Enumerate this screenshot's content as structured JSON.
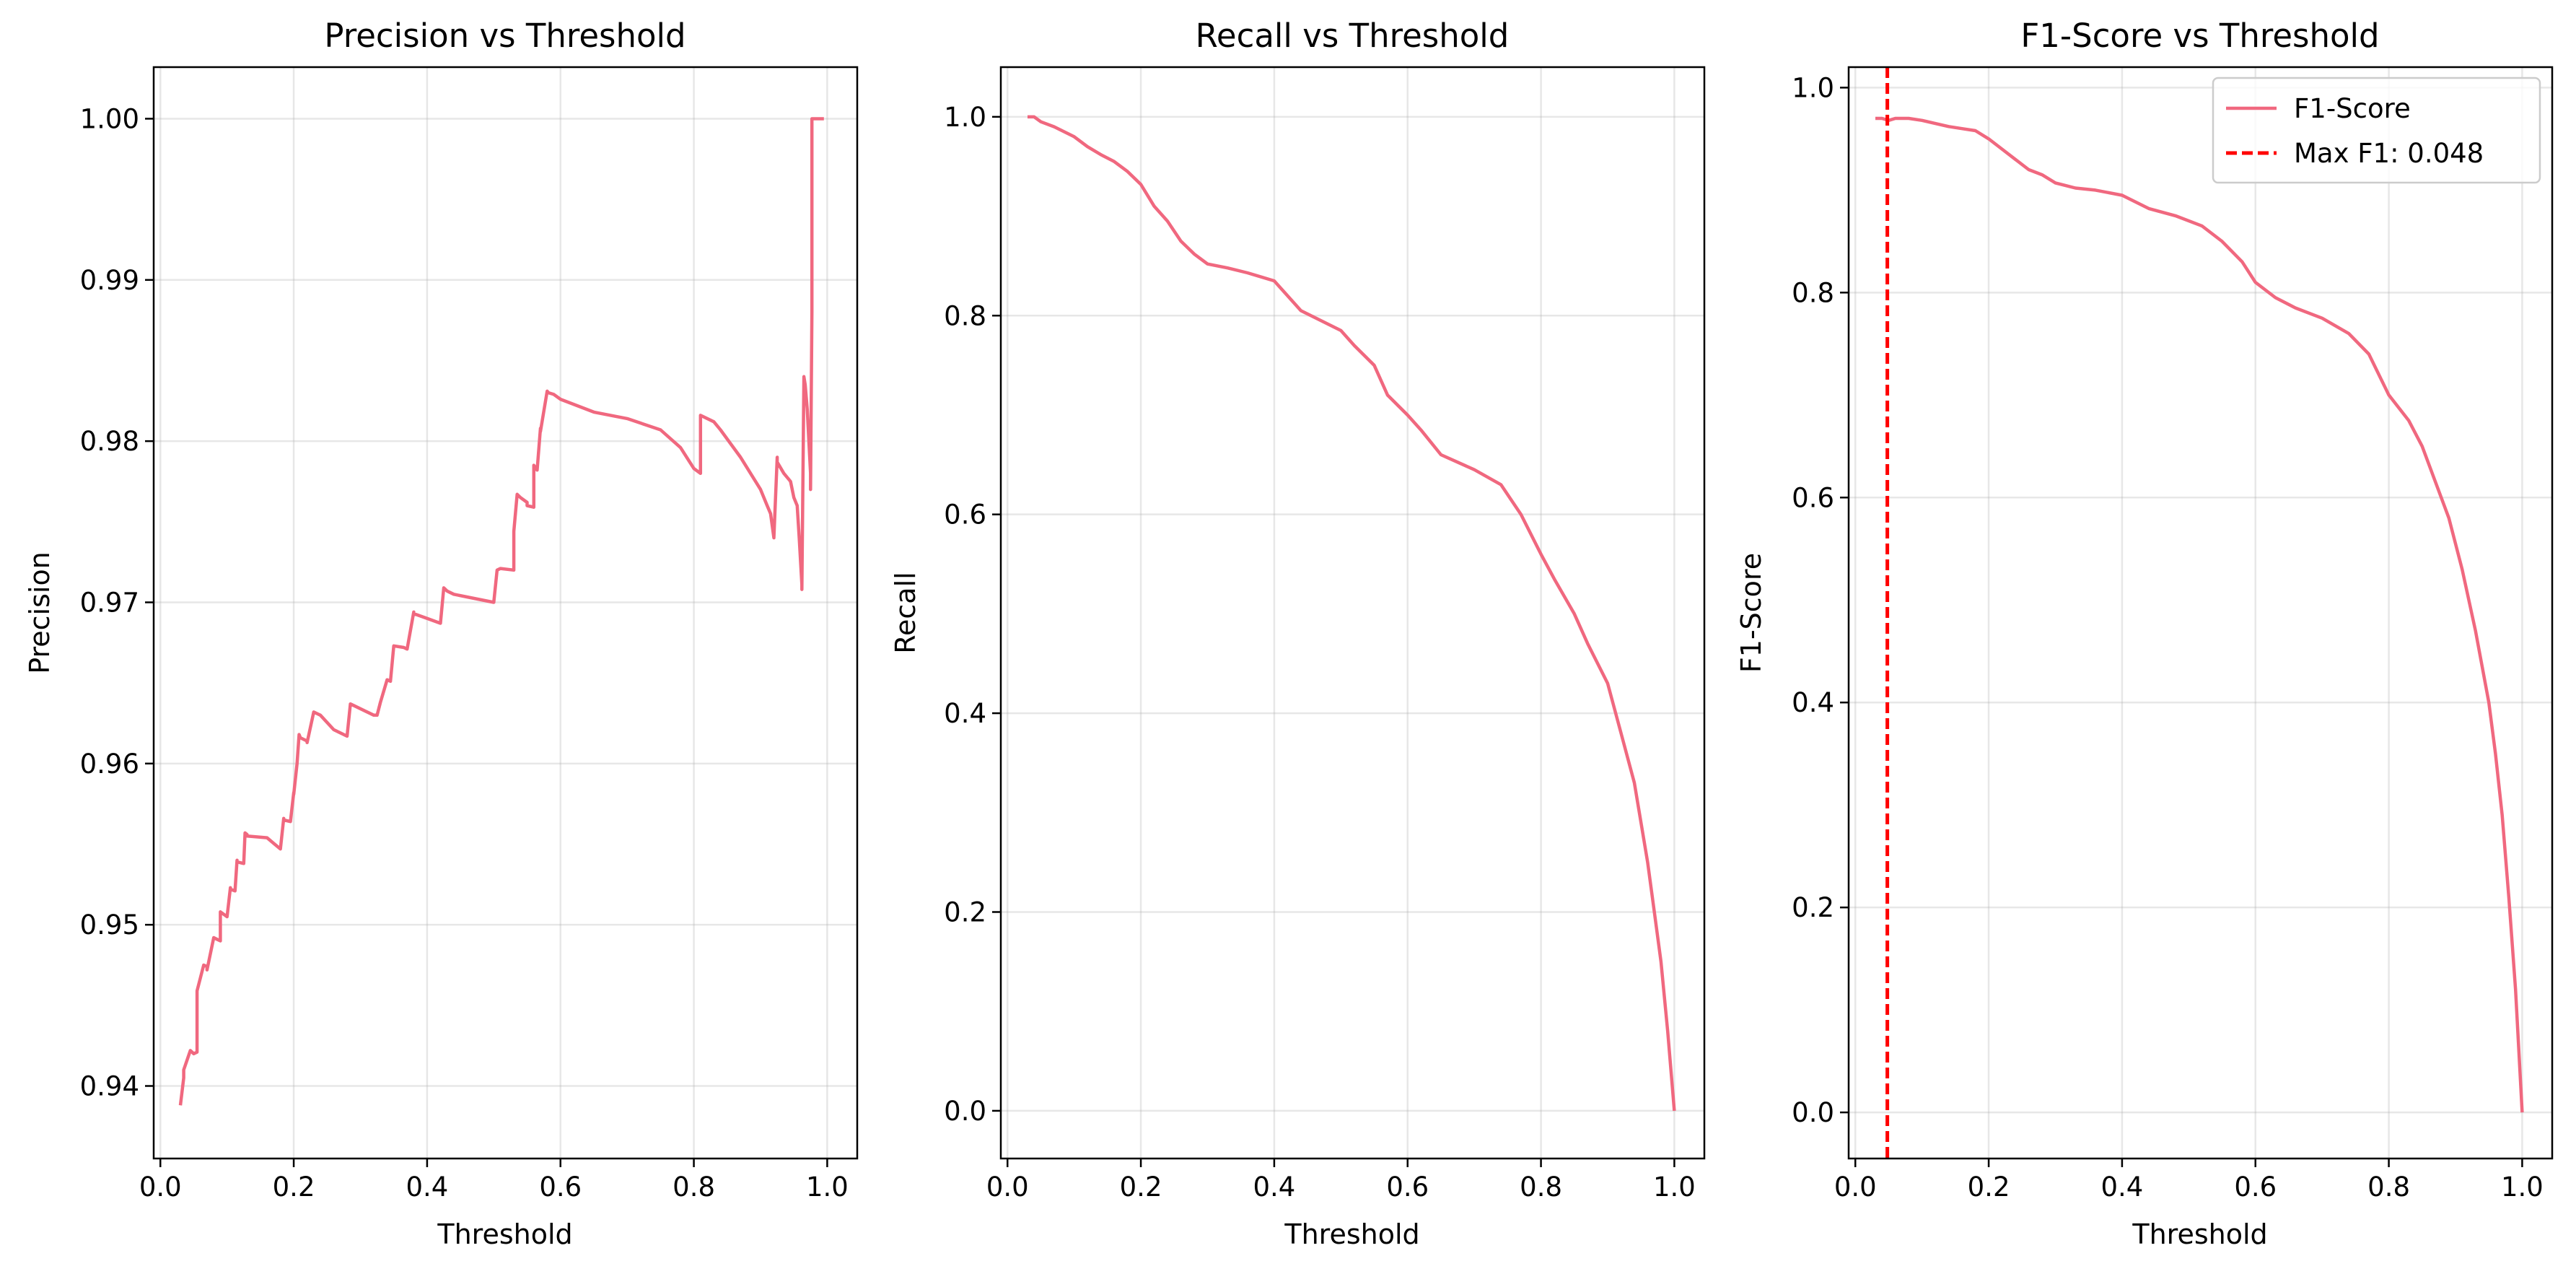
{
  "colors": {
    "series": "#f0687f",
    "reference_line": "#ff0000",
    "legend_border": "#cccccc"
  },
  "chart_data": [
    {
      "type": "line",
      "title": "Precision vs Threshold",
      "xlabel": "Threshold",
      "ylabel": "Precision",
      "xlim": [
        -0.01,
        1.045
      ],
      "ylim": [
        0.9355,
        1.0032
      ],
      "xticks": [
        0.0,
        0.2,
        0.4,
        0.6,
        0.8,
        1.0
      ],
      "xtick_labels": [
        "0.0",
        "0.2",
        "0.4",
        "0.6",
        "0.8",
        "1.0"
      ],
      "yticks": [
        0.94,
        0.95,
        0.96,
        0.97,
        0.98,
        0.99,
        1.0
      ],
      "ytick_labels": [
        "0.94",
        "0.95",
        "0.96",
        "0.97",
        "0.98",
        "0.99",
        "1.00"
      ],
      "grid": true,
      "legend": "none",
      "series": [
        {
          "x": [
            0.03,
            0.035,
            0.035,
            0.045,
            0.05,
            0.055,
            0.055,
            0.065,
            0.07,
            0.07,
            0.08,
            0.085,
            0.09,
            0.09,
            0.1,
            0.105,
            0.105,
            0.112,
            0.115,
            0.115,
            0.125,
            0.127,
            0.13,
            0.13,
            0.16,
            0.18,
            0.185,
            0.185,
            0.195,
            0.2,
            0.2,
            0.205,
            0.208,
            0.21,
            0.22,
            0.22,
            0.23,
            0.235,
            0.24,
            0.26,
            0.28,
            0.285,
            0.29,
            0.32,
            0.325,
            0.33,
            0.34,
            0.345,
            0.35,
            0.365,
            0.37,
            0.38,
            0.38,
            0.4,
            0.42,
            0.425,
            0.43,
            0.44,
            0.5,
            0.505,
            0.51,
            0.53,
            0.53,
            0.535,
            0.54,
            0.55,
            0.55,
            0.56,
            0.56,
            0.565,
            0.57,
            0.57,
            0.58,
            0.582,
            0.59,
            0.6,
            0.65,
            0.7,
            0.75,
            0.78,
            0.8,
            0.81,
            0.81,
            0.83,
            0.84,
            0.87,
            0.9,
            0.91,
            0.915,
            0.92,
            0.925,
            0.925,
            0.935,
            0.945,
            0.95,
            0.955,
            0.958,
            0.962,
            0.962,
            0.965,
            0.967,
            0.97,
            0.975,
            0.975,
            0.977,
            0.977,
            0.98,
            0.99,
            0.995
          ],
          "y": [
            0.9388,
            0.9405,
            0.941,
            0.9422,
            0.942,
            0.9421,
            0.9459,
            0.9475,
            0.9474,
            0.9472,
            0.9492,
            0.9491,
            0.949,
            0.9508,
            0.9505,
            0.9523,
            0.9522,
            0.9521,
            0.954,
            0.9539,
            0.9538,
            0.9557,
            0.9556,
            0.9555,
            0.9554,
            0.9547,
            0.9566,
            0.9565,
            0.9564,
            0.9582,
            0.9581,
            0.96,
            0.9618,
            0.9616,
            0.9614,
            0.9613,
            0.9632,
            0.9631,
            0.963,
            0.9621,
            0.9617,
            0.9637,
            0.9636,
            0.963,
            0.963,
            0.9638,
            0.9652,
            0.9651,
            0.9673,
            0.9672,
            0.9671,
            0.9694,
            0.9693,
            0.969,
            0.9687,
            0.9709,
            0.9707,
            0.9705,
            0.97,
            0.972,
            0.9721,
            0.972,
            0.9744,
            0.9767,
            0.9765,
            0.9762,
            0.976,
            0.9759,
            0.9785,
            0.9782,
            0.9808,
            0.9806,
            0.9831,
            0.983,
            0.9829,
            0.9826,
            0.9818,
            0.9814,
            0.9807,
            0.9796,
            0.9783,
            0.978,
            0.9816,
            0.9812,
            0.9807,
            0.979,
            0.977,
            0.976,
            0.9755,
            0.974,
            0.979,
            0.9787,
            0.978,
            0.9775,
            0.9765,
            0.976,
            0.974,
            0.9711,
            0.9708,
            0.984,
            0.9835,
            0.982,
            0.978,
            0.977,
            0.988,
            1.0,
            1.0,
            1.0,
            1.0
          ]
        }
      ]
    },
    {
      "type": "line",
      "title": "Recall vs Threshold",
      "xlabel": "Threshold",
      "ylabel": "Recall",
      "xlim": [
        -0.01,
        1.045
      ],
      "ylim": [
        -0.048,
        1.05
      ],
      "xticks": [
        0.0,
        0.2,
        0.4,
        0.6,
        0.8,
        1.0
      ],
      "xtick_labels": [
        "0.0",
        "0.2",
        "0.4",
        "0.6",
        "0.8",
        "1.0"
      ],
      "yticks": [
        0.0,
        0.2,
        0.4,
        0.6,
        0.8,
        1.0
      ],
      "ytick_labels": [
        "0.0",
        "0.2",
        "0.4",
        "0.6",
        "0.8",
        "1.0"
      ],
      "grid": true,
      "legend": "none",
      "series": [
        {
          "x": [
            0.03,
            0.04,
            0.05,
            0.07,
            0.1,
            0.12,
            0.14,
            0.16,
            0.18,
            0.2,
            0.22,
            0.24,
            0.26,
            0.28,
            0.3,
            0.33,
            0.36,
            0.4,
            0.44,
            0.47,
            0.5,
            0.52,
            0.55,
            0.57,
            0.6,
            0.62,
            0.65,
            0.7,
            0.74,
            0.77,
            0.8,
            0.82,
            0.85,
            0.87,
            0.9,
            0.92,
            0.94,
            0.96,
            0.97,
            0.98,
            0.99,
            0.995,
            1.0
          ],
          "y": [
            1.0,
            1.0,
            0.995,
            0.99,
            0.98,
            0.97,
            0.962,
            0.955,
            0.945,
            0.932,
            0.91,
            0.895,
            0.875,
            0.862,
            0.852,
            0.848,
            0.843,
            0.835,
            0.805,
            0.795,
            0.785,
            0.77,
            0.75,
            0.72,
            0.7,
            0.685,
            0.66,
            0.645,
            0.63,
            0.6,
            0.56,
            0.535,
            0.5,
            0.47,
            0.43,
            0.38,
            0.33,
            0.25,
            0.2,
            0.15,
            0.08,
            0.04,
            0.0
          ]
        }
      ]
    },
    {
      "type": "line",
      "title": "F1-Score vs Threshold",
      "xlabel": "Threshold",
      "ylabel": "F1-Score",
      "xlim": [
        -0.01,
        1.045
      ],
      "ylim": [
        -0.045,
        1.02
      ],
      "xticks": [
        0.0,
        0.2,
        0.4,
        0.6,
        0.8,
        1.0
      ],
      "xtick_labels": [
        "0.0",
        "0.2",
        "0.4",
        "0.6",
        "0.8",
        "1.0"
      ],
      "yticks": [
        0.0,
        0.2,
        0.4,
        0.6,
        0.8,
        1.0
      ],
      "ytick_labels": [
        "0.0",
        "0.2",
        "0.4",
        "0.6",
        "0.8",
        "1.0"
      ],
      "grid": true,
      "legend": "top-right",
      "series": [
        {
          "name": "F1-Score",
          "x": [
            0.03,
            0.04,
            0.05,
            0.06,
            0.08,
            0.1,
            0.12,
            0.14,
            0.16,
            0.18,
            0.2,
            0.22,
            0.24,
            0.26,
            0.28,
            0.3,
            0.33,
            0.36,
            0.4,
            0.44,
            0.48,
            0.52,
            0.55,
            0.58,
            0.6,
            0.63,
            0.66,
            0.7,
            0.74,
            0.77,
            0.8,
            0.83,
            0.85,
            0.87,
            0.89,
            0.91,
            0.93,
            0.95,
            0.96,
            0.97,
            0.98,
            0.99,
            0.995,
            1.0
          ],
          "y": [
            0.97,
            0.97,
            0.968,
            0.97,
            0.97,
            0.968,
            0.965,
            0.962,
            0.96,
            0.958,
            0.95,
            0.94,
            0.93,
            0.92,
            0.915,
            0.907,
            0.902,
            0.9,
            0.895,
            0.882,
            0.875,
            0.865,
            0.85,
            0.83,
            0.81,
            0.795,
            0.785,
            0.775,
            0.76,
            0.74,
            0.7,
            0.675,
            0.65,
            0.615,
            0.58,
            0.53,
            0.47,
            0.4,
            0.35,
            0.29,
            0.21,
            0.12,
            0.06,
            0.0
          ]
        }
      ],
      "reference_lines": [
        {
          "name": "Max F1: 0.048",
          "orientation": "vertical",
          "x": 0.048,
          "style": "dashed"
        }
      ]
    }
  ]
}
